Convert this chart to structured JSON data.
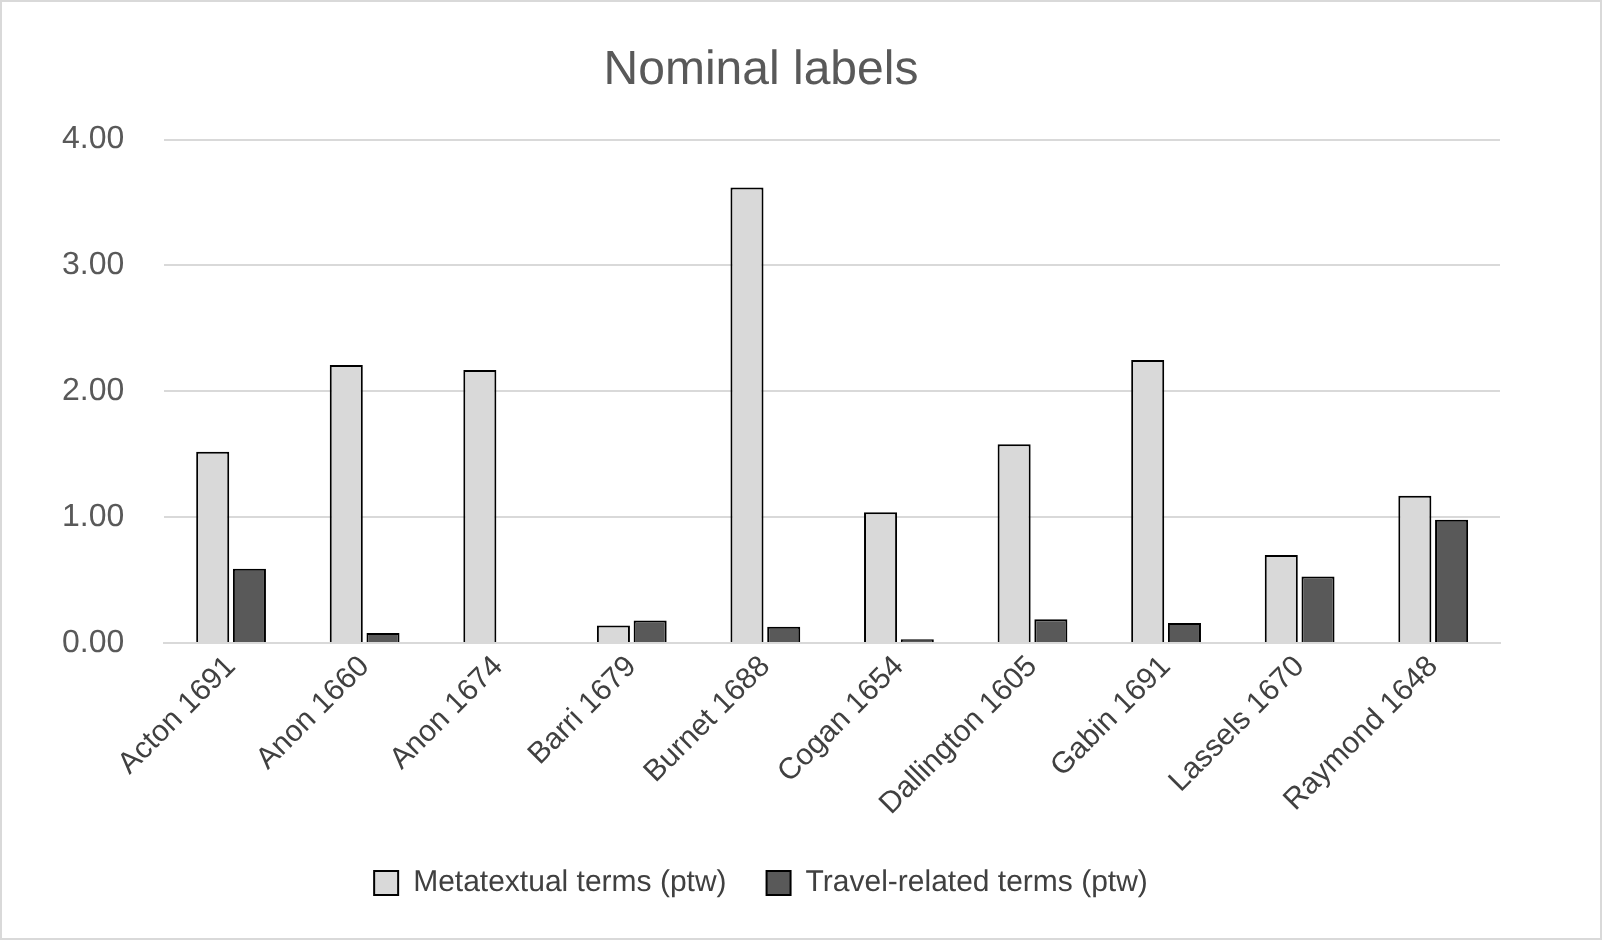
{
  "chart_data": {
    "type": "bar",
    "title": "Nominal labels",
    "categories": [
      "Acton 1691",
      "Anon 1660",
      "Anon 1674",
      "Barri 1679",
      "Burnet 1688",
      "Cogan 1654",
      "Dallington 1605",
      "Gabin 1691",
      "Lassels 1670",
      "Raymond 1648"
    ],
    "series": [
      {
        "name": "Metatextual terms (ptw)",
        "color": "#d9d9d9",
        "values": [
          1.52,
          2.21,
          2.17,
          0.14,
          3.62,
          1.04,
          1.58,
          2.25,
          0.7,
          1.17
        ]
      },
      {
        "name": "Travel-related terms (ptw)",
        "color": "#595959",
        "values": [
          0.59,
          0.08,
          0,
          0.18,
          0.13,
          0.03,
          0.19,
          0.16,
          0.53,
          0.98
        ]
      }
    ],
    "ylim": [
      0,
      4
    ],
    "yticks": [
      {
        "value": 0,
        "label": "0.00"
      },
      {
        "value": 1,
        "label": "1.00"
      },
      {
        "value": 2,
        "label": "2.00"
      },
      {
        "value": 3,
        "label": "3.00"
      },
      {
        "value": 4,
        "label": "4.00"
      }
    ],
    "grid": "y",
    "legend": "bottom"
  }
}
